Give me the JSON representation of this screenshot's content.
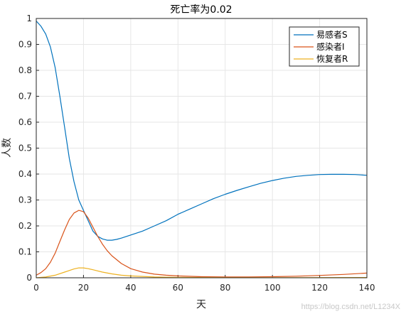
{
  "chart_data": {
    "type": "line",
    "title": "死亡率为0.02",
    "xlabel": "天",
    "ylabel": "人数",
    "xlim": [
      0,
      140
    ],
    "ylim": [
      0,
      1
    ],
    "xticks": [
      "0",
      "20",
      "40",
      "60",
      "80",
      "100",
      "120",
      "140"
    ],
    "yticks": [
      "0",
      "0.1",
      "0.2",
      "0.3",
      "0.4",
      "0.5",
      "0.6",
      "0.7",
      "0.8",
      "0.9",
      "1"
    ],
    "grid": true,
    "legend_position": "top-right",
    "series": [
      {
        "name": "易感者S",
        "color": "#0072BD",
        "x": [
          0,
          2,
          4,
          6,
          8,
          10,
          12,
          14,
          16,
          18,
          20,
          22,
          24,
          26,
          28,
          30,
          32,
          34,
          36,
          40,
          45,
          50,
          55,
          60,
          65,
          70,
          75,
          80,
          85,
          90,
          95,
          100,
          105,
          110,
          115,
          120,
          125,
          130,
          135,
          140
        ],
        "y": [
          0.99,
          0.97,
          0.94,
          0.89,
          0.81,
          0.7,
          0.58,
          0.46,
          0.37,
          0.3,
          0.26,
          0.22,
          0.18,
          0.16,
          0.15,
          0.145,
          0.145,
          0.148,
          0.153,
          0.165,
          0.18,
          0.2,
          0.22,
          0.245,
          0.265,
          0.285,
          0.305,
          0.322,
          0.337,
          0.351,
          0.364,
          0.375,
          0.384,
          0.391,
          0.395,
          0.398,
          0.399,
          0.399,
          0.398,
          0.395
        ]
      },
      {
        "name": "感染者I",
        "color": "#D95319",
        "x": [
          0,
          2,
          4,
          6,
          8,
          10,
          12,
          14,
          16,
          18,
          20,
          22,
          24,
          26,
          28,
          30,
          32,
          34,
          36,
          40,
          45,
          50,
          55,
          60,
          70,
          80,
          90,
          100,
          110,
          120,
          130,
          140
        ],
        "y": [
          0.01,
          0.02,
          0.035,
          0.06,
          0.095,
          0.14,
          0.185,
          0.225,
          0.25,
          0.26,
          0.255,
          0.23,
          0.195,
          0.16,
          0.13,
          0.105,
          0.085,
          0.07,
          0.055,
          0.035,
          0.022,
          0.014,
          0.01,
          0.007,
          0.004,
          0.003,
          0.003,
          0.004,
          0.006,
          0.009,
          0.013,
          0.018
        ]
      },
      {
        "name": "恢复者R",
        "color": "#EDB120",
        "x": [
          0,
          4,
          8,
          12,
          16,
          18,
          20,
          22,
          24,
          28,
          32,
          36,
          40,
          50,
          60,
          80,
          100,
          120,
          140
        ],
        "y": [
          0.0,
          0.003,
          0.01,
          0.022,
          0.034,
          0.038,
          0.038,
          0.035,
          0.031,
          0.022,
          0.015,
          0.01,
          0.007,
          0.003,
          0.0015,
          0.0005,
          0.0005,
          0.0008,
          0.001
        ]
      }
    ]
  },
  "watermark": "https://blog.csdn.net/L1234X"
}
